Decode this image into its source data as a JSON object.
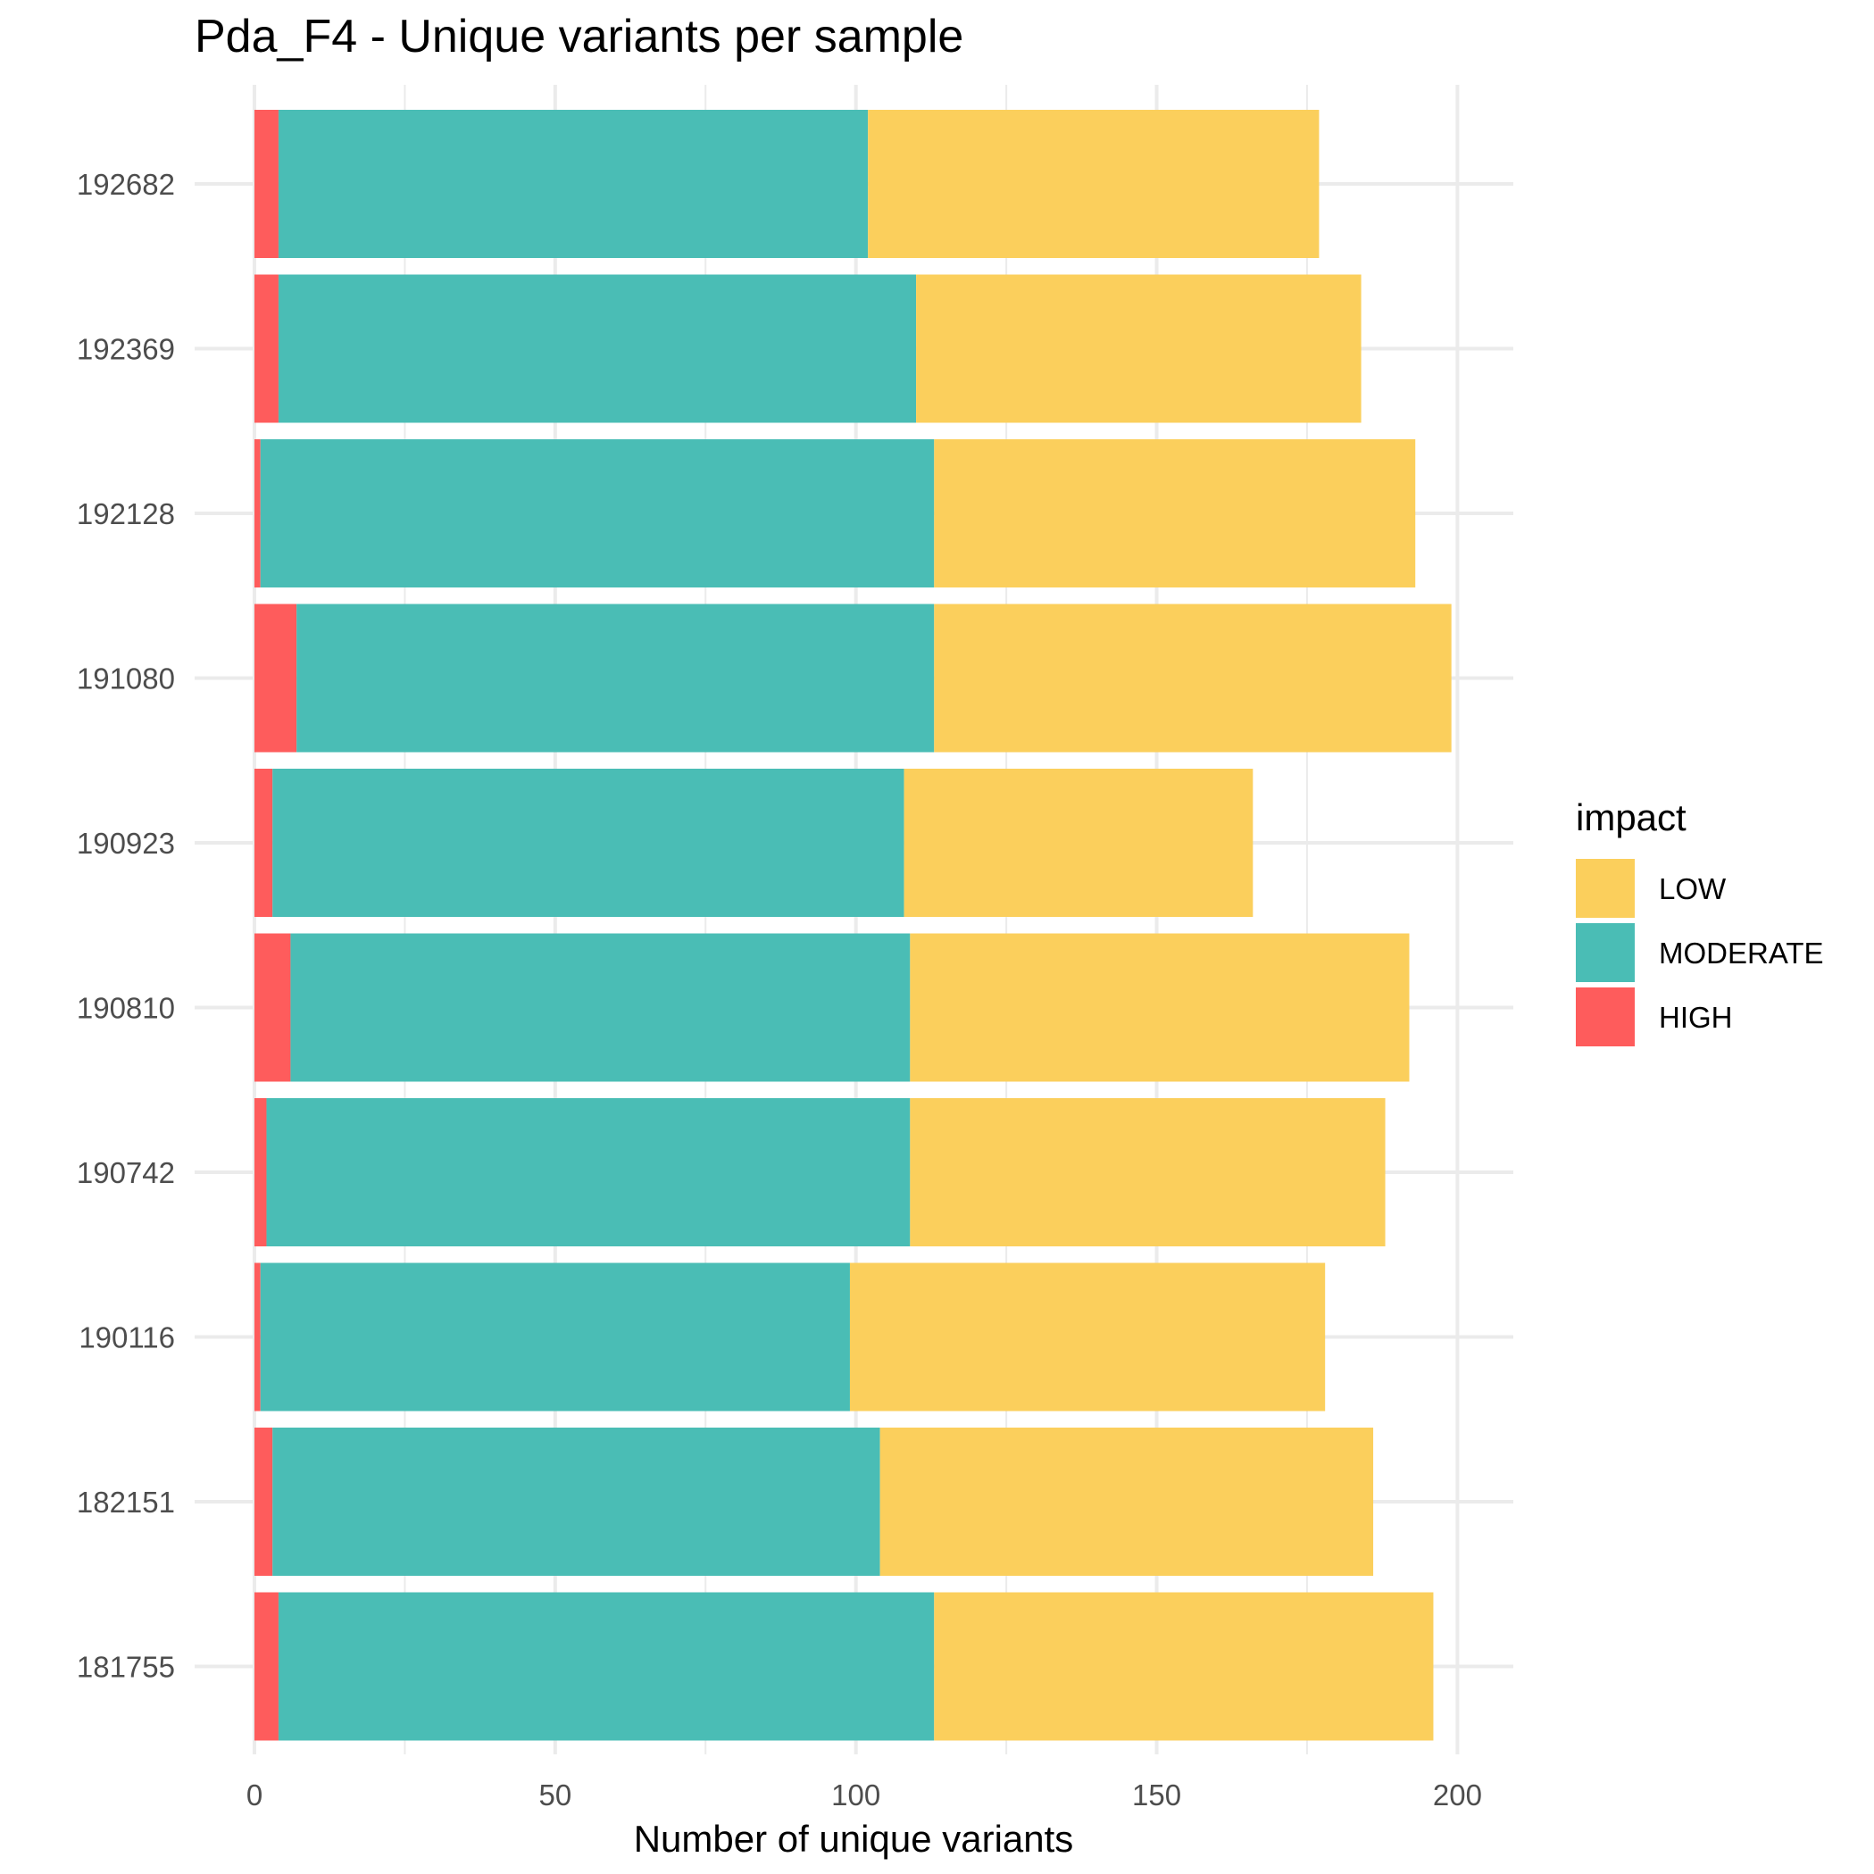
{
  "chart_data": {
    "type": "bar",
    "orientation": "horizontal",
    "stacked": true,
    "title": "Pda_F4 - Unique variants per sample",
    "xlabel": "Number of unique variants",
    "ylabel": "",
    "xlim": [
      0,
      209
    ],
    "xticks": [
      0,
      50,
      100,
      150,
      200
    ],
    "grid": true,
    "categories": [
      "192682",
      "192369",
      "192128",
      "191080",
      "190923",
      "190810",
      "190742",
      "190116",
      "182151",
      "181755"
    ],
    "series": [
      {
        "name": "HIGH",
        "color": "#fe5c5c",
        "values": [
          4,
          4,
          1,
          7,
          3,
          6,
          2,
          1,
          3,
          4
        ]
      },
      {
        "name": "MODERATE",
        "color": "#4abdb5",
        "values": [
          98,
          106,
          112,
          106,
          105,
          103,
          107,
          98,
          101,
          109
        ]
      },
      {
        "name": "LOW",
        "color": "#fbcf5c",
        "values": [
          75,
          74,
          80,
          86,
          58,
          83,
          79,
          79,
          82,
          83
        ]
      }
    ],
    "legend": {
      "title": "impact",
      "placement": "right",
      "order": [
        "LOW",
        "MODERATE",
        "HIGH"
      ]
    }
  }
}
